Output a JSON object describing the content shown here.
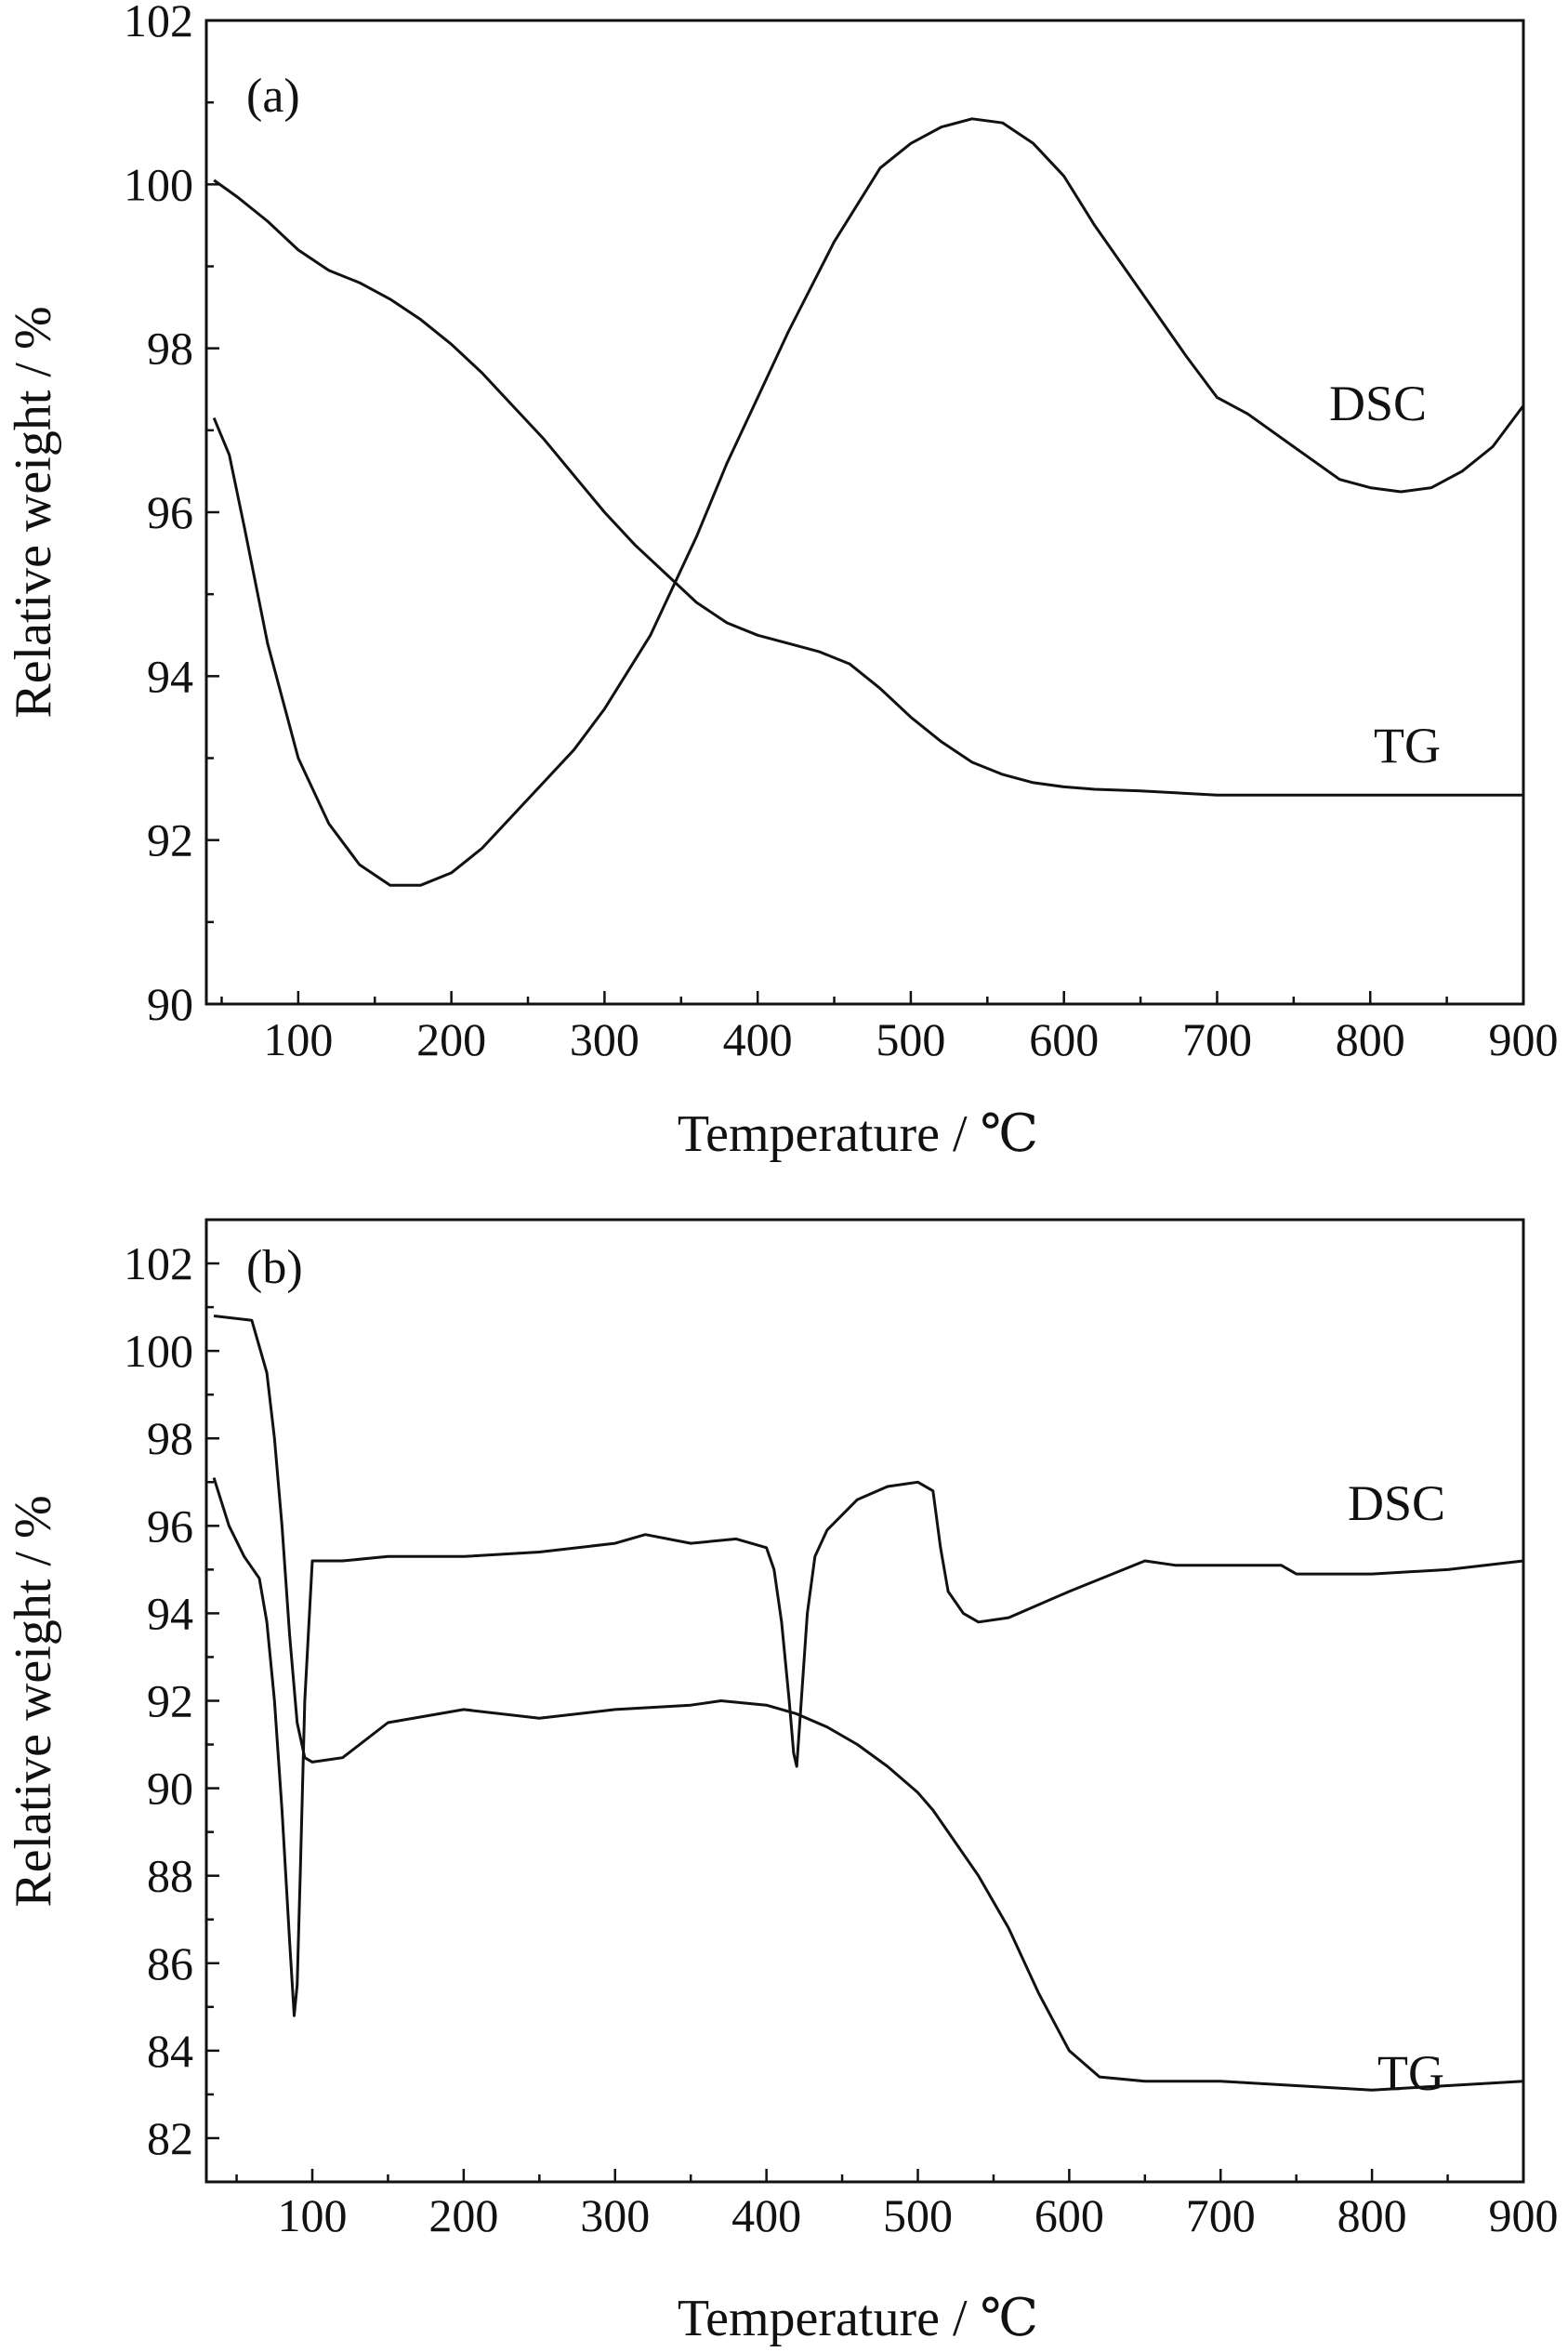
{
  "chart_data": [
    {
      "type": "line",
      "panel": "(a)",
      "xlabel": "Temperature / ℃",
      "ylabel": "Relative weight / %",
      "xlim": [
        40,
        900
      ],
      "ylim": [
        90,
        102
      ],
      "xticks": [
        100,
        200,
        300,
        400,
        500,
        600,
        700,
        800,
        900
      ],
      "yticks": [
        90,
        92,
        94,
        96,
        98,
        100,
        102
      ],
      "grid": false,
      "series": [
        {
          "name": "TG",
          "x": [
            45,
            60,
            80,
            100,
            120,
            140,
            160,
            180,
            200,
            220,
            240,
            260,
            280,
            300,
            320,
            340,
            360,
            380,
            400,
            420,
            440,
            460,
            480,
            500,
            520,
            540,
            560,
            580,
            600,
            620,
            650,
            700,
            750,
            800,
            850,
            900
          ],
          "y": [
            100.05,
            99.85,
            99.55,
            99.2,
            98.95,
            98.8,
            98.6,
            98.35,
            98.05,
            97.7,
            97.3,
            96.9,
            96.45,
            96.0,
            95.6,
            95.25,
            94.9,
            94.65,
            94.5,
            94.4,
            94.3,
            94.15,
            93.85,
            93.5,
            93.2,
            92.95,
            92.8,
            92.7,
            92.65,
            92.62,
            92.6,
            92.55,
            92.55,
            92.55,
            92.55,
            92.55
          ]
        },
        {
          "name": "DSC",
          "x": [
            45,
            55,
            65,
            80,
            100,
            120,
            140,
            160,
            180,
            200,
            220,
            250,
            280,
            300,
            330,
            360,
            380,
            400,
            420,
            450,
            480,
            500,
            520,
            540,
            560,
            580,
            600,
            620,
            650,
            680,
            700,
            720,
            750,
            780,
            800,
            820,
            840,
            860,
            880,
            900
          ],
          "y": [
            97.15,
            96.7,
            95.8,
            94.4,
            93.0,
            92.2,
            91.7,
            91.45,
            91.45,
            91.6,
            91.9,
            92.5,
            93.1,
            93.6,
            94.5,
            95.7,
            96.6,
            97.4,
            98.2,
            99.3,
            100.2,
            100.5,
            100.7,
            100.8,
            100.75,
            100.5,
            100.1,
            99.5,
            98.7,
            97.9,
            97.4,
            97.2,
            96.8,
            96.4,
            96.3,
            96.25,
            96.3,
            96.5,
            96.8,
            97.3
          ]
        }
      ],
      "annotations": [
        "(a)",
        "DSC",
        "TG"
      ]
    },
    {
      "type": "line",
      "panel": "(b)",
      "xlabel": "Temperature / ℃",
      "ylabel": "Relative weight / %",
      "xlim": [
        30,
        900
      ],
      "ylim": [
        81,
        103
      ],
      "xticks": [
        100,
        200,
        300,
        400,
        500,
        600,
        700,
        800,
        900
      ],
      "yticks": [
        82,
        84,
        86,
        88,
        90,
        92,
        94,
        96,
        98,
        100,
        102
      ],
      "grid": false,
      "series": [
        {
          "name": "TG",
          "x": [
            35,
            60,
            70,
            75,
            80,
            85,
            90,
            95,
            100,
            120,
            150,
            200,
            250,
            300,
            350,
            370,
            400,
            420,
            440,
            460,
            480,
            500,
            510,
            520,
            540,
            560,
            580,
            600,
            620,
            650,
            700,
            750,
            800,
            850,
            900
          ],
          "y": [
            100.8,
            100.7,
            99.5,
            98.0,
            96.0,
            93.5,
            91.5,
            90.7,
            90.6,
            90.7,
            91.5,
            91.8,
            91.6,
            91.8,
            91.9,
            92.0,
            91.9,
            91.7,
            91.4,
            91.0,
            90.5,
            89.9,
            89.5,
            89.0,
            88.0,
            86.8,
            85.3,
            84.0,
            83.4,
            83.3,
            83.3,
            83.2,
            83.1,
            83.2,
            83.3
          ]
        },
        {
          "name": "DSC",
          "x": [
            35,
            45,
            55,
            65,
            70,
            75,
            80,
            85,
            88,
            90,
            92,
            95,
            100,
            120,
            150,
            200,
            250,
            300,
            320,
            350,
            380,
            400,
            405,
            410,
            415,
            418,
            420,
            423,
            427,
            432,
            440,
            460,
            480,
            500,
            510,
            515,
            520,
            530,
            540,
            560,
            600,
            650,
            670,
            700,
            740,
            750,
            800,
            850,
            900
          ],
          "y": [
            97.1,
            96.0,
            95.3,
            94.8,
            93.8,
            92.0,
            89.5,
            86.5,
            84.8,
            85.5,
            88.0,
            92.0,
            95.2,
            95.2,
            95.3,
            95.3,
            95.4,
            95.6,
            95.8,
            95.6,
            95.7,
            95.5,
            95.0,
            93.8,
            92.0,
            90.8,
            90.5,
            92.0,
            94.0,
            95.3,
            95.9,
            96.6,
            96.9,
            97.0,
            96.8,
            95.5,
            94.5,
            94.0,
            93.8,
            93.9,
            94.5,
            95.2,
            95.1,
            95.1,
            95.1,
            94.9,
            94.9,
            95.0,
            95.2
          ]
        }
      ],
      "annotations": [
        "(b)",
        "DSC",
        "TG"
      ]
    }
  ]
}
